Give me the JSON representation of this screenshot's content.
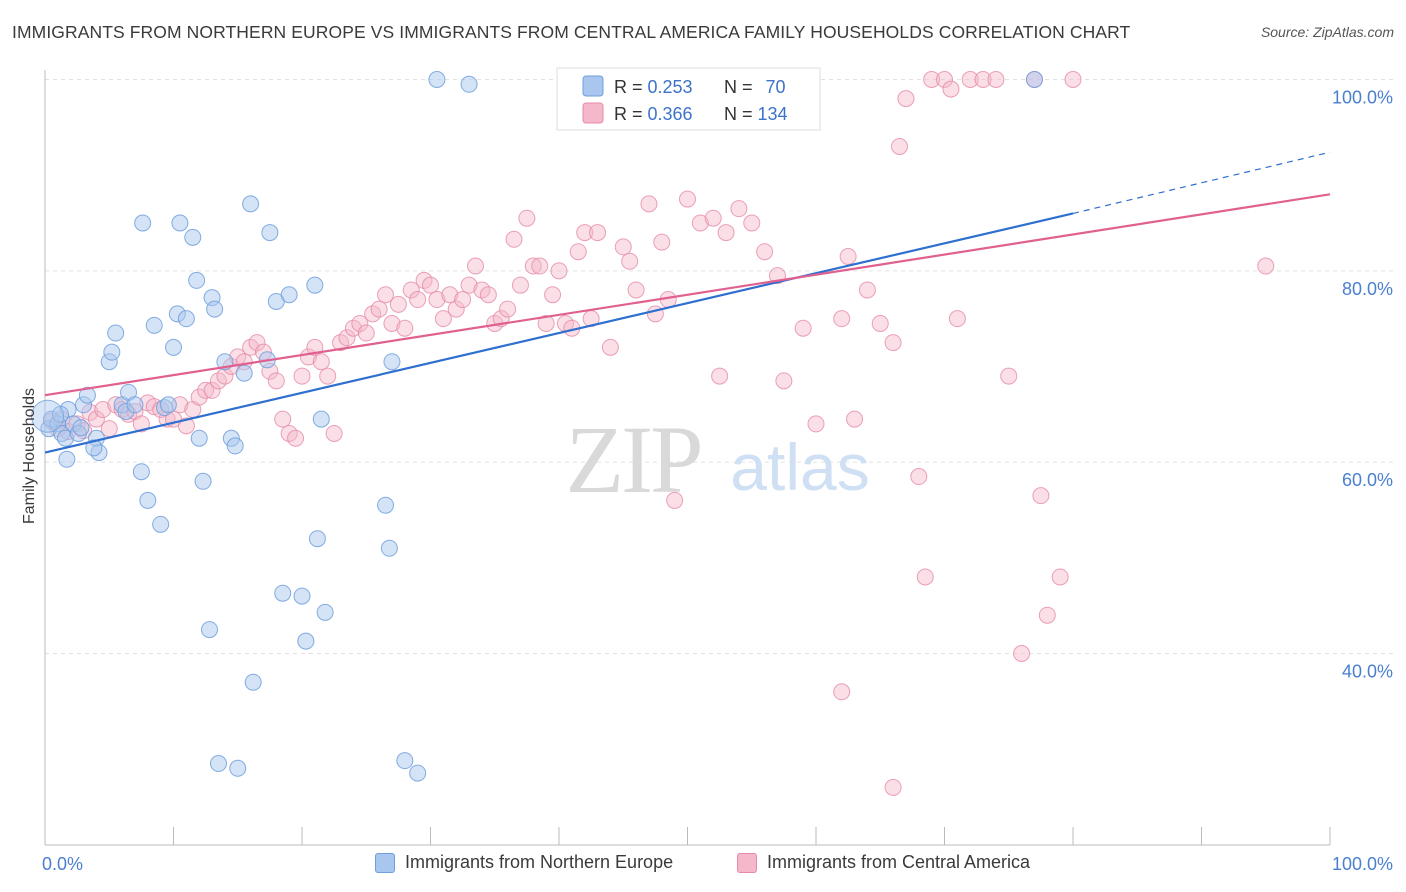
{
  "header": {
    "title": "IMMIGRANTS FROM NORTHERN EUROPE VS IMMIGRANTS FROM CENTRAL AMERICA FAMILY HOUSEHOLDS CORRELATION CHART",
    "source": "Source: ZipAtlas.com"
  },
  "watermark": {
    "zip": "ZIP",
    "atlas": "atlas"
  },
  "colors": {
    "blue_fill": "#a9c7ee",
    "blue_stroke": "#6f9fde",
    "blue_line": "#2f6fcf",
    "pink_fill": "#f4b8ca",
    "pink_stroke": "#e68aa8",
    "pink_line": "#e0608f",
    "tick_label": "#4a7fd0",
    "grid": "#e2e2e2"
  },
  "legend_top": {
    "rows": [
      {
        "r_label": "R = ",
        "r_value": "0.253",
        "n_label": "N = ",
        "n_value": "70"
      },
      {
        "r_label": "R = ",
        "r_value": "0.366",
        "n_label": "N = ",
        "n_value": "134"
      }
    ]
  },
  "legend_bottom": {
    "blue": "Immigrants from Northern Europe",
    "pink": "Immigrants from Central America"
  },
  "chart_data": {
    "type": "scatter",
    "title": "IMMIGRANTS FROM NORTHERN EUROPE VS IMMIGRANTS FROM CENTRAL AMERICA FAMILY HOUSEHOLDS CORRELATION CHART",
    "xlabel": "",
    "ylabel": "Family Households",
    "xlim": [
      0,
      100
    ],
    "ylim": [
      20,
      102
    ],
    "x_tick_labels": [
      {
        "value": 0,
        "label": "0.0%"
      },
      {
        "value": 100,
        "label": "100.0%"
      }
    ],
    "y_tick_labels": [
      {
        "value": 100,
        "label": "100.0%"
      },
      {
        "value": 80,
        "label": "80.0%"
      },
      {
        "value": 60,
        "label": "60.0%"
      },
      {
        "value": 40,
        "label": "40.0%"
      }
    ],
    "grid": true,
    "legend_position": "top-center",
    "series": [
      {
        "name": "Immigrants from Northern Europe",
        "R": 0.253,
        "N": 70,
        "trend": {
          "x0": 0,
          "y0": 61.0,
          "x1": 80,
          "y1": 86.0,
          "dashed_to": {
            "x": 100,
            "y": 92.4
          }
        },
        "points": [
          [
            0.3,
            63.5
          ],
          [
            0.5,
            64.5
          ],
          [
            1,
            64
          ],
          [
            1.3,
            63
          ],
          [
            1.6,
            62.5
          ],
          [
            1.8,
            65.5
          ],
          [
            2.2,
            64
          ],
          [
            2.6,
            63
          ],
          [
            3,
            66
          ],
          [
            3.3,
            67
          ],
          [
            4,
            62.5
          ],
          [
            4.2,
            61
          ],
          [
            3.8,
            61.5
          ],
          [
            1.7,
            60.3
          ],
          [
            5,
            70.5
          ],
          [
            5.2,
            71.5
          ],
          [
            5.5,
            73.5
          ],
          [
            6,
            66
          ],
          [
            6.3,
            65.3
          ],
          [
            6.5,
            67.3
          ],
          [
            7,
            66
          ],
          [
            7.5,
            59
          ],
          [
            8,
            56
          ],
          [
            8.5,
            74.3
          ],
          [
            9,
            53.5
          ],
          [
            9.3,
            65.7
          ],
          [
            9.6,
            66
          ],
          [
            10,
            72
          ],
          [
            10.3,
            75.5
          ],
          [
            11,
            75
          ],
          [
            10.5,
            85
          ],
          [
            7.6,
            85
          ],
          [
            11.5,
            83.5
          ],
          [
            11.8,
            79
          ],
          [
            12,
            62.5
          ],
          [
            12.3,
            58
          ],
          [
            13,
            77.2
          ],
          [
            13.2,
            76
          ],
          [
            12.8,
            42.5
          ],
          [
            14,
            70.5
          ],
          [
            13.5,
            28.5
          ],
          [
            14.5,
            62.5
          ],
          [
            14.8,
            61.7
          ],
          [
            15,
            28
          ],
          [
            15.5,
            69.3
          ],
          [
            16,
            87
          ],
          [
            16.2,
            37
          ],
          [
            17.5,
            84
          ],
          [
            18,
            76.8
          ],
          [
            18.5,
            46.3
          ],
          [
            17.3,
            70.7
          ],
          [
            19,
            77.5
          ],
          [
            20,
            46
          ],
          [
            20.3,
            41.3
          ],
          [
            21,
            78.5
          ],
          [
            21.2,
            52
          ],
          [
            21.5,
            64.5
          ],
          [
            21.8,
            44.3
          ],
          [
            26.5,
            55.5
          ],
          [
            26.8,
            51
          ],
          [
            27,
            70.5
          ],
          [
            28,
            28.8
          ],
          [
            29,
            27.5
          ],
          [
            30.5,
            100
          ],
          [
            33,
            99.5
          ],
          [
            48,
            100
          ],
          [
            49,
            100
          ],
          [
            77,
            100
          ],
          [
            1.2,
            65
          ],
          [
            2.8,
            63.6
          ]
        ]
      },
      {
        "name": "Immigrants from Central America",
        "R": 0.366,
        "N": 134,
        "trend": {
          "x0": 0,
          "y0": 67.0,
          "x1": 100,
          "y1": 88.0
        },
        "points": [
          [
            0.5,
            64.3
          ],
          [
            1,
            63.5
          ],
          [
            1.3,
            64.5
          ],
          [
            1.8,
            63.2
          ],
          [
            2.5,
            64
          ],
          [
            3,
            63.3
          ],
          [
            3.5,
            65.2
          ],
          [
            4,
            64.5
          ],
          [
            4.5,
            65.5
          ],
          [
            5,
            63.5
          ],
          [
            5.5,
            66
          ],
          [
            6,
            65.5
          ],
          [
            6.5,
            65
          ],
          [
            7,
            65.3
          ],
          [
            7.5,
            64
          ],
          [
            8,
            66.2
          ],
          [
            8.5,
            65.8
          ],
          [
            9,
            65.5
          ],
          [
            9.5,
            64.5
          ],
          [
            10,
            64.5
          ],
          [
            10.5,
            66
          ],
          [
            11,
            63.8
          ],
          [
            11.5,
            65.5
          ],
          [
            12,
            66.8
          ],
          [
            12.5,
            67.5
          ],
          [
            13,
            67.5
          ],
          [
            13.5,
            68.5
          ],
          [
            14,
            69
          ],
          [
            14.5,
            70
          ],
          [
            15,
            71
          ],
          [
            15.5,
            70.5
          ],
          [
            16,
            72
          ],
          [
            16.5,
            72.5
          ],
          [
            17,
            71.5
          ],
          [
            17.5,
            69.5
          ],
          [
            18,
            68.5
          ],
          [
            18.5,
            64.5
          ],
          [
            19,
            63
          ],
          [
            19.5,
            62.5
          ],
          [
            20,
            69
          ],
          [
            20.5,
            71
          ],
          [
            21,
            72
          ],
          [
            21.5,
            70.5
          ],
          [
            22,
            69
          ],
          [
            22.5,
            63
          ],
          [
            23,
            72.5
          ],
          [
            23.5,
            73
          ],
          [
            24,
            74
          ],
          [
            24.5,
            74.5
          ],
          [
            25,
            73.5
          ],
          [
            25.5,
            75.5
          ],
          [
            26,
            76
          ],
          [
            26.5,
            77.5
          ],
          [
            27,
            74.5
          ],
          [
            27.5,
            76.5
          ],
          [
            28,
            74
          ],
          [
            28.5,
            78
          ],
          [
            29,
            77
          ],
          [
            29.5,
            79
          ],
          [
            30,
            78.5
          ],
          [
            30.5,
            77
          ],
          [
            31,
            75
          ],
          [
            31.5,
            77.5
          ],
          [
            32,
            76
          ],
          [
            32.5,
            77
          ],
          [
            33,
            78.5
          ],
          [
            33.5,
            80.5
          ],
          [
            34,
            78
          ],
          [
            34.5,
            77.5
          ],
          [
            35,
            74.5
          ],
          [
            35.5,
            75
          ],
          [
            36,
            76
          ],
          [
            36.5,
            83.3
          ],
          [
            37,
            78.5
          ],
          [
            37.5,
            85.5
          ],
          [
            38,
            80.5
          ],
          [
            38.5,
            80.5
          ],
          [
            39,
            74.5
          ],
          [
            39.5,
            77.5
          ],
          [
            40,
            80
          ],
          [
            40.5,
            74.5
          ],
          [
            41,
            74
          ],
          [
            41.5,
            82
          ],
          [
            42,
            84
          ],
          [
            42.5,
            75
          ],
          [
            43,
            84
          ],
          [
            44,
            72
          ],
          [
            45,
            82.5
          ],
          [
            45.5,
            81
          ],
          [
            46,
            78
          ],
          [
            47,
            87
          ],
          [
            47.5,
            75.5
          ],
          [
            48,
            83
          ],
          [
            48.5,
            77
          ],
          [
            49,
            56
          ],
          [
            50,
            87.5
          ],
          [
            51,
            85
          ],
          [
            52,
            85.5
          ],
          [
            52.5,
            69
          ],
          [
            53,
            84
          ],
          [
            54,
            86.5
          ],
          [
            55,
            85
          ],
          [
            56,
            82
          ],
          [
            57,
            79.5
          ],
          [
            57.5,
            68.5
          ],
          [
            59,
            74
          ],
          [
            60,
            64
          ],
          [
            62,
            75
          ],
          [
            62.5,
            81.5
          ],
          [
            63,
            64.5
          ],
          [
            64,
            78
          ],
          [
            65,
            74.5
          ],
          [
            66,
            72.5
          ],
          [
            66.5,
            93
          ],
          [
            67,
            98
          ],
          [
            68,
            58.5
          ],
          [
            68.5,
            48
          ],
          [
            69,
            100
          ],
          [
            70,
            100
          ],
          [
            70.5,
            99
          ],
          [
            71,
            75
          ],
          [
            72,
            100
          ],
          [
            73,
            100
          ],
          [
            74,
            100
          ],
          [
            75,
            69
          ],
          [
            76,
            40
          ],
          [
            77,
            100
          ],
          [
            77.5,
            56.5
          ],
          [
            78,
            44
          ],
          [
            79,
            48
          ],
          [
            80,
            100
          ],
          [
            62,
            36
          ],
          [
            66,
            26
          ],
          [
            95,
            80.5
          ]
        ]
      }
    ]
  }
}
